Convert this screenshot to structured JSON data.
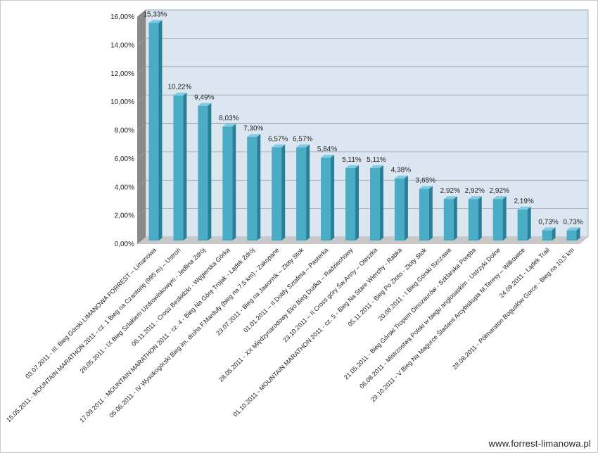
{
  "chart_data": {
    "type": "bar",
    "y_tick_labels": [
      "0,00%",
      "2,00%",
      "4,00%",
      "6,00%",
      "8,00%",
      "10,00%",
      "12,00%",
      "14,00%",
      "16,00%"
    ],
    "ylim": [
      0,
      16
    ],
    "grid": true,
    "categories": [
      "03.07.2011 - III. Bieg Górski LIMANOWA FORREST – Limanowa",
      "15.05.2011 - MOUNTAIN MARATHON 2011 - cz. 1 Bieg na Czantorię (995 m) – Ustroń",
      "28.05.2011 - IX Bieg Szlakiem Uzdrowiskowym - Jedlina Zdrój",
      "06.11.2011 - Cross Beskidzki - Węgierska Górka",
      "17.09.2011 - MOUNTAIN MARATHON 2011 - cz. 4 - Bieg Na Górę Trojak - Lądek Zdrój",
      "05.06.2011 - IV Wysokogórski Bieg im. druha F.Marduły (bieg na 7,5 km) - Zakopane",
      "23.07.2011 - Bieg na Jaworník – Złoty Stok",
      "01.01.2011 – II Doldy Sztafeta – Pasterka",
      "28.05.2011 - XX Międzynarodowy Eko Bieg Dudka – Radziechowy",
      "23.10.2011 – II Cross góry Św.Anny – Oleszka",
      "01.10.2011 - MOUNTAIN MARATHON 2011 - cz. 5 - Bieg Na Stare Wierchy - Rabka",
      "05.11.2011 - Bieg Po Złoto - Złoty Stok",
      "20.08.2011 - I Bieg Górski Szczawa",
      "21.05.2011 - Bieg Górski Tropem Dinozaurów - Szklarska Poręba",
      "06.08.2011 - Mistrzostwa Polski w biegu anglosaskim - Ustrzyki Dolne",
      "29.10.2011 - V Bieg Na Magurce Śladami Arcybiskupa M.Teresy – Wilkowice",
      "24.09.2011 - Lądek Trail",
      "28.08.2011 - Półmaraton Bogusłów Gorce - Bieg na 10,5 km"
    ],
    "values": [
      15.33,
      10.22,
      9.49,
      8.03,
      7.3,
      6.57,
      6.57,
      5.84,
      5.11,
      5.11,
      4.38,
      3.65,
      2.92,
      2.92,
      2.92,
      2.19,
      0.73,
      0.73
    ],
    "data_labels": [
      "15,33%",
      "10,22%",
      "9,49%",
      "8,03%",
      "7,30%",
      "6,57%",
      "6,57%",
      "5,84%",
      "5,11%",
      "5,11%",
      "4,38%",
      "3,65%",
      "2,92%",
      "2,92%",
      "2,92%",
      "2,19%",
      "0,73%",
      "0,73%"
    ],
    "colors": {
      "bar_front": "#4bacc6",
      "bar_side": "#2a7f98",
      "bar_top": "#7fcbe0",
      "wall": "#dbe6f1",
      "floor": "#c8c8c8",
      "side_wall": "#8a8a8a",
      "grid": "#9aa3ad"
    }
  },
  "watermark": "www.forrest-limanowa.pl"
}
